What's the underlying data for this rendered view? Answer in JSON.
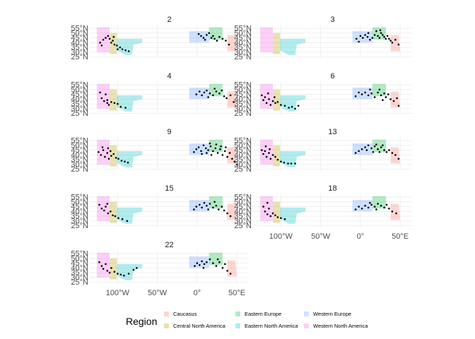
{
  "chart_data": {
    "type": "scatter",
    "subtype": "faceted map with region shading and location points",
    "facet_labels": [
      "2",
      "3",
      "4",
      "6",
      "9",
      "13",
      "15",
      "18",
      "22"
    ],
    "x_tick_labels": [
      "100°W",
      "50°W",
      "0°",
      "50°E"
    ],
    "x_ticks": [
      -100,
      -50,
      0,
      50
    ],
    "y_tick_labels": [
      "25°N",
      "30°N",
      "35°N",
      "40°N",
      "45°N",
      "50°N",
      "55°N"
    ],
    "y_ticks": [
      25,
      30,
      35,
      40,
      45,
      50,
      55
    ],
    "xlim": [
      -135,
      65
    ],
    "ylim": [
      24,
      58
    ],
    "legend": {
      "title": "Region",
      "position": "bottom",
      "entries": [
        {
          "name": "Caucasus",
          "color": "#F8766D"
        },
        {
          "name": "Central North America",
          "color": "#B79F00"
        },
        {
          "name": "Eastern Europe",
          "color": "#00BA38"
        },
        {
          "name": "Eastern North America",
          "color": "#00BFC4"
        },
        {
          "name": "Western Europe",
          "color": "#619CFF"
        },
        {
          "name": "Western North America",
          "color": "#F564E3"
        }
      ]
    },
    "regions": [
      {
        "name": "Western North America",
        "polygon": [
          [
            -126,
            56
          ],
          [
            -110,
            56
          ],
          [
            -110,
            30
          ],
          [
            -126,
            30
          ]
        ]
      },
      {
        "name": "Central North America",
        "polygon": [
          [
            -110,
            50
          ],
          [
            -101,
            50
          ],
          [
            -101,
            28
          ],
          [
            -110,
            28
          ]
        ]
      },
      {
        "name": "Eastern North America",
        "polygon": [
          [
            -101,
            44
          ],
          [
            -69,
            44
          ],
          [
            -69,
            40
          ],
          [
            -80,
            38
          ],
          [
            -82,
            27
          ],
          [
            -90,
            27
          ],
          [
            -101,
            32
          ]
        ]
      },
      {
        "name": "Western Europe",
        "polygon": [
          [
            -10,
            52
          ],
          [
            15,
            52
          ],
          [
            15,
            40
          ],
          [
            -10,
            40
          ]
        ]
      },
      {
        "name": "Eastern Europe",
        "polygon": [
          [
            15,
            56
          ],
          [
            32,
            56
          ],
          [
            32,
            43
          ],
          [
            15,
            43
          ]
        ]
      },
      {
        "name": "Caucasus",
        "polygon": [
          [
            38,
            48
          ],
          [
            48,
            48
          ],
          [
            50,
            31
          ],
          [
            38,
            31
          ]
        ]
      }
    ],
    "panels": [
      {
        "facet": "2",
        "points": [
          [
            -122,
            40
          ],
          [
            -118,
            43
          ],
          [
            -115,
            45
          ],
          [
            -112,
            47
          ],
          [
            -110,
            44
          ],
          [
            -108,
            40
          ],
          [
            -106,
            42
          ],
          [
            -104,
            38
          ],
          [
            -101,
            37
          ],
          [
            -97,
            35
          ],
          [
            -94,
            33
          ],
          [
            -90,
            32
          ],
          [
            -86,
            31
          ],
          [
            -100,
            33
          ],
          [
            -120,
            37
          ],
          [
            -105,
            46
          ],
          [
            2,
            49
          ],
          [
            5,
            47
          ],
          [
            8,
            45
          ],
          [
            10,
            43
          ],
          [
            12,
            48
          ],
          [
            18,
            45
          ],
          [
            22,
            44
          ],
          [
            25,
            42
          ],
          [
            28,
            46
          ],
          [
            32,
            44
          ],
          [
            36,
            42
          ],
          [
            40,
            38
          ],
          [
            15,
            50
          ],
          [
            20,
            47
          ]
        ]
      },
      {
        "facet": "3",
        "points": [
          [
            -5,
            44
          ],
          [
            0,
            47
          ],
          [
            3,
            45
          ],
          [
            6,
            48
          ],
          [
            9,
            46
          ],
          [
            12,
            43
          ],
          [
            15,
            45
          ],
          [
            18,
            48
          ],
          [
            20,
            52
          ],
          [
            22,
            47
          ],
          [
            24,
            45
          ],
          [
            26,
            50
          ],
          [
            28,
            48
          ],
          [
            30,
            46
          ],
          [
            32,
            44
          ],
          [
            34,
            47
          ],
          [
            36,
            44
          ],
          [
            38,
            42
          ],
          [
            40,
            40
          ],
          [
            44,
            43
          ],
          [
            48,
            38
          ],
          [
            10,
            50
          ],
          [
            25,
            53
          ],
          [
            -2,
            41
          ]
        ]
      },
      {
        "facet": "4",
        "points": [
          [
            -122,
            47
          ],
          [
            -120,
            41
          ],
          [
            -117,
            38
          ],
          [
            -115,
            45
          ],
          [
            -113,
            36
          ],
          [
            -111,
            34
          ],
          [
            -108,
            37
          ],
          [
            -104,
            36
          ],
          [
            -100,
            35
          ],
          [
            -96,
            32
          ],
          [
            -90,
            31
          ],
          [
            -113,
            39
          ],
          [
            -1,
            45
          ],
          [
            3,
            48
          ],
          [
            6,
            44
          ],
          [
            9,
            47
          ],
          [
            12,
            49
          ],
          [
            16,
            46
          ],
          [
            20,
            44
          ],
          [
            24,
            48
          ],
          [
            28,
            46
          ],
          [
            31,
            49
          ],
          [
            34,
            43
          ],
          [
            37,
            41
          ],
          [
            42,
            44
          ],
          [
            46,
            37
          ],
          [
            14,
            42
          ],
          [
            22,
            51
          ]
        ]
      },
      {
        "facet": "6",
        "points": [
          [
            -124,
            44
          ],
          [
            -122,
            39
          ],
          [
            -120,
            42
          ],
          [
            -118,
            36
          ],
          [
            -115,
            40
          ],
          [
            -113,
            34
          ],
          [
            -110,
            38
          ],
          [
            -107,
            36
          ],
          [
            -104,
            37
          ],
          [
            -100,
            34
          ],
          [
            -95,
            33
          ],
          [
            -90,
            31
          ],
          [
            -86,
            32
          ],
          [
            -82,
            30
          ],
          [
            -78,
            33
          ],
          [
            -116,
            46
          ],
          [
            -108,
            42
          ],
          [
            -6,
            43
          ],
          [
            -2,
            47
          ],
          [
            2,
            45
          ],
          [
            6,
            47
          ],
          [
            10,
            44
          ],
          [
            14,
            46
          ],
          [
            18,
            42
          ],
          [
            22,
            47
          ],
          [
            26,
            44
          ],
          [
            30,
            46
          ],
          [
            32,
            42
          ],
          [
            35,
            45
          ],
          [
            38,
            40
          ],
          [
            42,
            38
          ],
          [
            46,
            41
          ],
          [
            48,
            33
          ],
          [
            12,
            50
          ],
          [
            24,
            50
          ],
          [
            28,
            39
          ]
        ]
      },
      {
        "facet": "9",
        "points": [
          [
            -124,
            43
          ],
          [
            -121,
            40
          ],
          [
            -118,
            45
          ],
          [
            -116,
            38
          ],
          [
            -113,
            42
          ],
          [
            -111,
            36
          ],
          [
            -108,
            39
          ],
          [
            -105,
            41
          ],
          [
            -102,
            37
          ],
          [
            -99,
            36
          ],
          [
            -95,
            34
          ],
          [
            -91,
            33
          ],
          [
            -87,
            32
          ],
          [
            -119,
            48
          ],
          [
            -112,
            47
          ],
          [
            -109,
            44
          ],
          [
            -4,
            43
          ],
          [
            -1,
            46
          ],
          [
            2,
            48
          ],
          [
            5,
            44
          ],
          [
            8,
            50
          ],
          [
            11,
            47
          ],
          [
            14,
            45
          ],
          [
            17,
            49
          ],
          [
            20,
            44
          ],
          [
            23,
            47
          ],
          [
            26,
            42
          ],
          [
            29,
            46
          ],
          [
            32,
            40
          ],
          [
            35,
            44
          ],
          [
            38,
            38
          ],
          [
            41,
            42
          ],
          [
            44,
            36
          ],
          [
            47,
            33
          ],
          [
            50,
            30
          ],
          [
            12,
            42
          ],
          [
            18,
            40
          ],
          [
            24,
            51
          ],
          [
            30,
            49
          ],
          [
            36,
            48
          ],
          [
            6,
            41
          ],
          [
            16,
            52
          ]
        ]
      },
      {
        "facet": "13",
        "points": [
          [
            -124,
            45
          ],
          [
            -122,
            41
          ],
          [
            -120,
            44
          ],
          [
            -118,
            38
          ],
          [
            -115,
            42
          ],
          [
            -113,
            36
          ],
          [
            -110,
            40
          ],
          [
            -107,
            38
          ],
          [
            -104,
            35
          ],
          [
            -100,
            33
          ],
          [
            -96,
            32
          ],
          [
            -91,
            31
          ],
          [
            -87,
            31
          ],
          [
            -82,
            31
          ],
          [
            -119,
            49
          ],
          [
            -114,
            46
          ],
          [
            -6,
            42
          ],
          [
            -2,
            44
          ],
          [
            2,
            46
          ],
          [
            6,
            48
          ],
          [
            10,
            50
          ],
          [
            14,
            47
          ],
          [
            18,
            49
          ],
          [
            22,
            46
          ],
          [
            26,
            48
          ],
          [
            30,
            45
          ],
          [
            33,
            43
          ],
          [
            36,
            45
          ],
          [
            40,
            42
          ],
          [
            44,
            40
          ],
          [
            48,
            36
          ],
          [
            16,
            43
          ],
          [
            24,
            43
          ],
          [
            8,
            45
          ],
          [
            20,
            51
          ],
          [
            28,
            50
          ]
        ]
      },
      {
        "facet": "15",
        "points": [
          [
            -123,
            47
          ],
          [
            -120,
            43
          ],
          [
            -117,
            41
          ],
          [
            -115,
            45
          ],
          [
            -112,
            38
          ],
          [
            -109,
            40
          ],
          [
            -106,
            36
          ],
          [
            -103,
            35
          ],
          [
            -99,
            33
          ],
          [
            -94,
            32
          ],
          [
            -88,
            30
          ],
          [
            -113,
            48
          ],
          [
            -4,
            42
          ],
          [
            -1,
            45
          ],
          [
            3,
            47
          ],
          [
            6,
            44
          ],
          [
            9,
            49
          ],
          [
            12,
            46
          ],
          [
            16,
            48
          ],
          [
            20,
            44
          ],
          [
            24,
            46
          ],
          [
            27,
            42
          ],
          [
            31,
            45
          ],
          [
            34,
            41
          ],
          [
            38,
            38
          ],
          [
            42,
            35
          ],
          [
            14,
            42
          ],
          [
            22,
            50
          ]
        ]
      },
      {
        "facet": "18",
        "points": [
          [
            -122,
            45
          ],
          [
            -120,
            40
          ],
          [
            -117,
            37
          ],
          [
            -115,
            43
          ],
          [
            -113,
            35
          ],
          [
            -110,
            38
          ],
          [
            -107,
            36
          ],
          [
            -104,
            34
          ],
          [
            -100,
            33
          ],
          [
            -95,
            32
          ],
          [
            -117,
            49
          ],
          [
            -6,
            42
          ],
          [
            -2,
            45
          ],
          [
            2,
            43
          ],
          [
            6,
            46
          ],
          [
            10,
            44
          ],
          [
            14,
            47
          ],
          [
            18,
            45
          ],
          [
            22,
            48
          ],
          [
            26,
            46
          ],
          [
            30,
            44
          ],
          [
            33,
            47
          ],
          [
            36,
            43
          ],
          [
            40,
            40
          ],
          [
            45,
            38
          ],
          [
            12,
            49
          ],
          [
            20,
            42
          ]
        ]
      },
      {
        "facet": "22",
        "points": [
          [
            -123,
            46
          ],
          [
            -120,
            42
          ],
          [
            -118,
            39
          ],
          [
            -115,
            44
          ],
          [
            -113,
            37
          ],
          [
            -110,
            35
          ],
          [
            -108,
            40
          ],
          [
            -104,
            36
          ],
          [
            -100,
            34
          ],
          [
            -96,
            33
          ],
          [
            -92,
            32
          ],
          [
            -86,
            34
          ],
          [
            -80,
            38
          ],
          [
            -76,
            40
          ],
          [
            -3,
            42
          ],
          [
            0,
            45
          ],
          [
            3,
            43
          ],
          [
            6,
            47
          ],
          [
            9,
            44
          ],
          [
            12,
            46
          ],
          [
            16,
            49
          ],
          [
            20,
            45
          ],
          [
            24,
            42
          ],
          [
            28,
            46
          ],
          [
            32,
            40
          ],
          [
            35,
            44
          ],
          [
            38,
            37
          ],
          [
            42,
            34
          ],
          [
            8,
            40
          ],
          [
            26,
            49
          ]
        ]
      }
    ]
  }
}
